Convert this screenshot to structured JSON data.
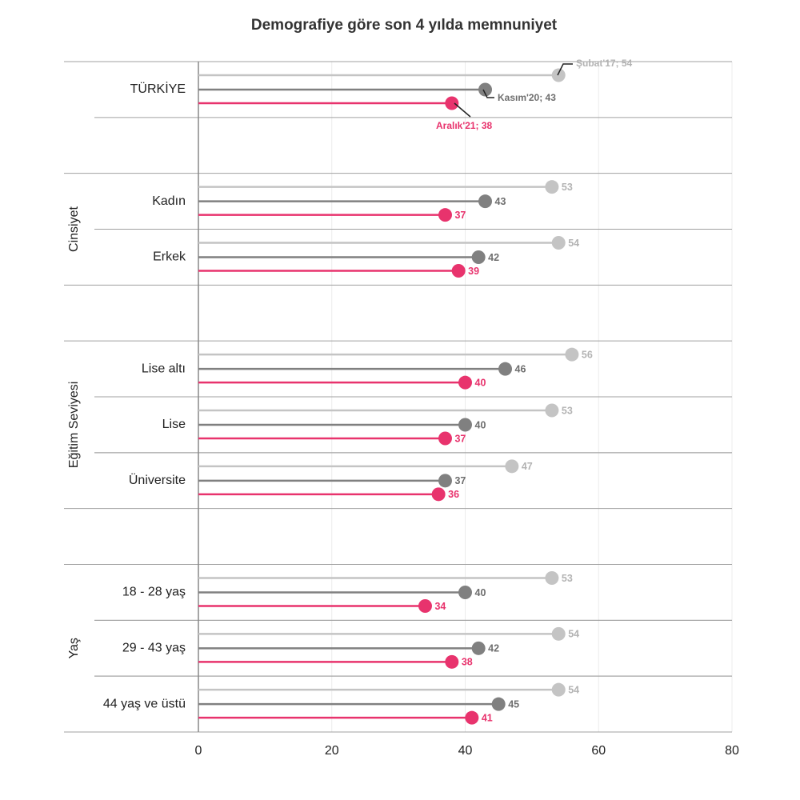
{
  "chart_data": {
    "type": "lollipop",
    "title": "Demografiye göre son 4 yılda  memnuniyet",
    "categories": [
      "TÜRKİYE",
      null,
      "Kadın",
      "Erkek",
      null,
      "Lise altı",
      "Lise",
      "Üniversite",
      null,
      "18 - 28 yaş",
      "29 - 43 yaş",
      "44 yaş ve üstü"
    ],
    "groups": [
      {
        "label": "Cinsiyet",
        "categories": [
          2,
          3
        ]
      },
      {
        "label": "Eğitim Seviyesi",
        "categories": [
          5,
          6,
          7
        ]
      },
      {
        "label": "Yaş",
        "categories": [
          9,
          10,
          11
        ]
      }
    ],
    "series": [
      {
        "color": "#c4c4c4",
        "label_color": "#b3b3b3",
        "values": [
          54,
          null,
          53,
          54,
          null,
          56,
          53,
          47,
          null,
          53,
          54,
          54
        ],
        "value_labels": [
          "Şubat'17; 54",
          null,
          "53",
          "54",
          null,
          "56",
          "53",
          "47",
          null,
          "53",
          "54",
          "54"
        ]
      },
      {
        "color": "#808080",
        "label_color": "#6e6e6e",
        "values": [
          43,
          null,
          43,
          42,
          null,
          46,
          40,
          37,
          null,
          40,
          42,
          45
        ],
        "value_labels": [
          "Kasım'20; 43",
          null,
          "43",
          "42",
          null,
          "46",
          "40",
          "37",
          null,
          "40",
          "42",
          "45"
        ]
      },
      {
        "color": "#e8336d",
        "label_color": "#e8336d",
        "values": [
          38,
          null,
          37,
          39,
          null,
          40,
          37,
          36,
          null,
          34,
          38,
          41
        ],
        "value_labels": [
          "Aralık'21; 38",
          null,
          "37",
          "39",
          null,
          "40",
          "37",
          "36",
          null,
          "34",
          "38",
          "41"
        ]
      }
    ],
    "xlim": [
      0,
      80
    ],
    "xticks": [
      0,
      20,
      40,
      60,
      80
    ],
    "grid": true
  }
}
